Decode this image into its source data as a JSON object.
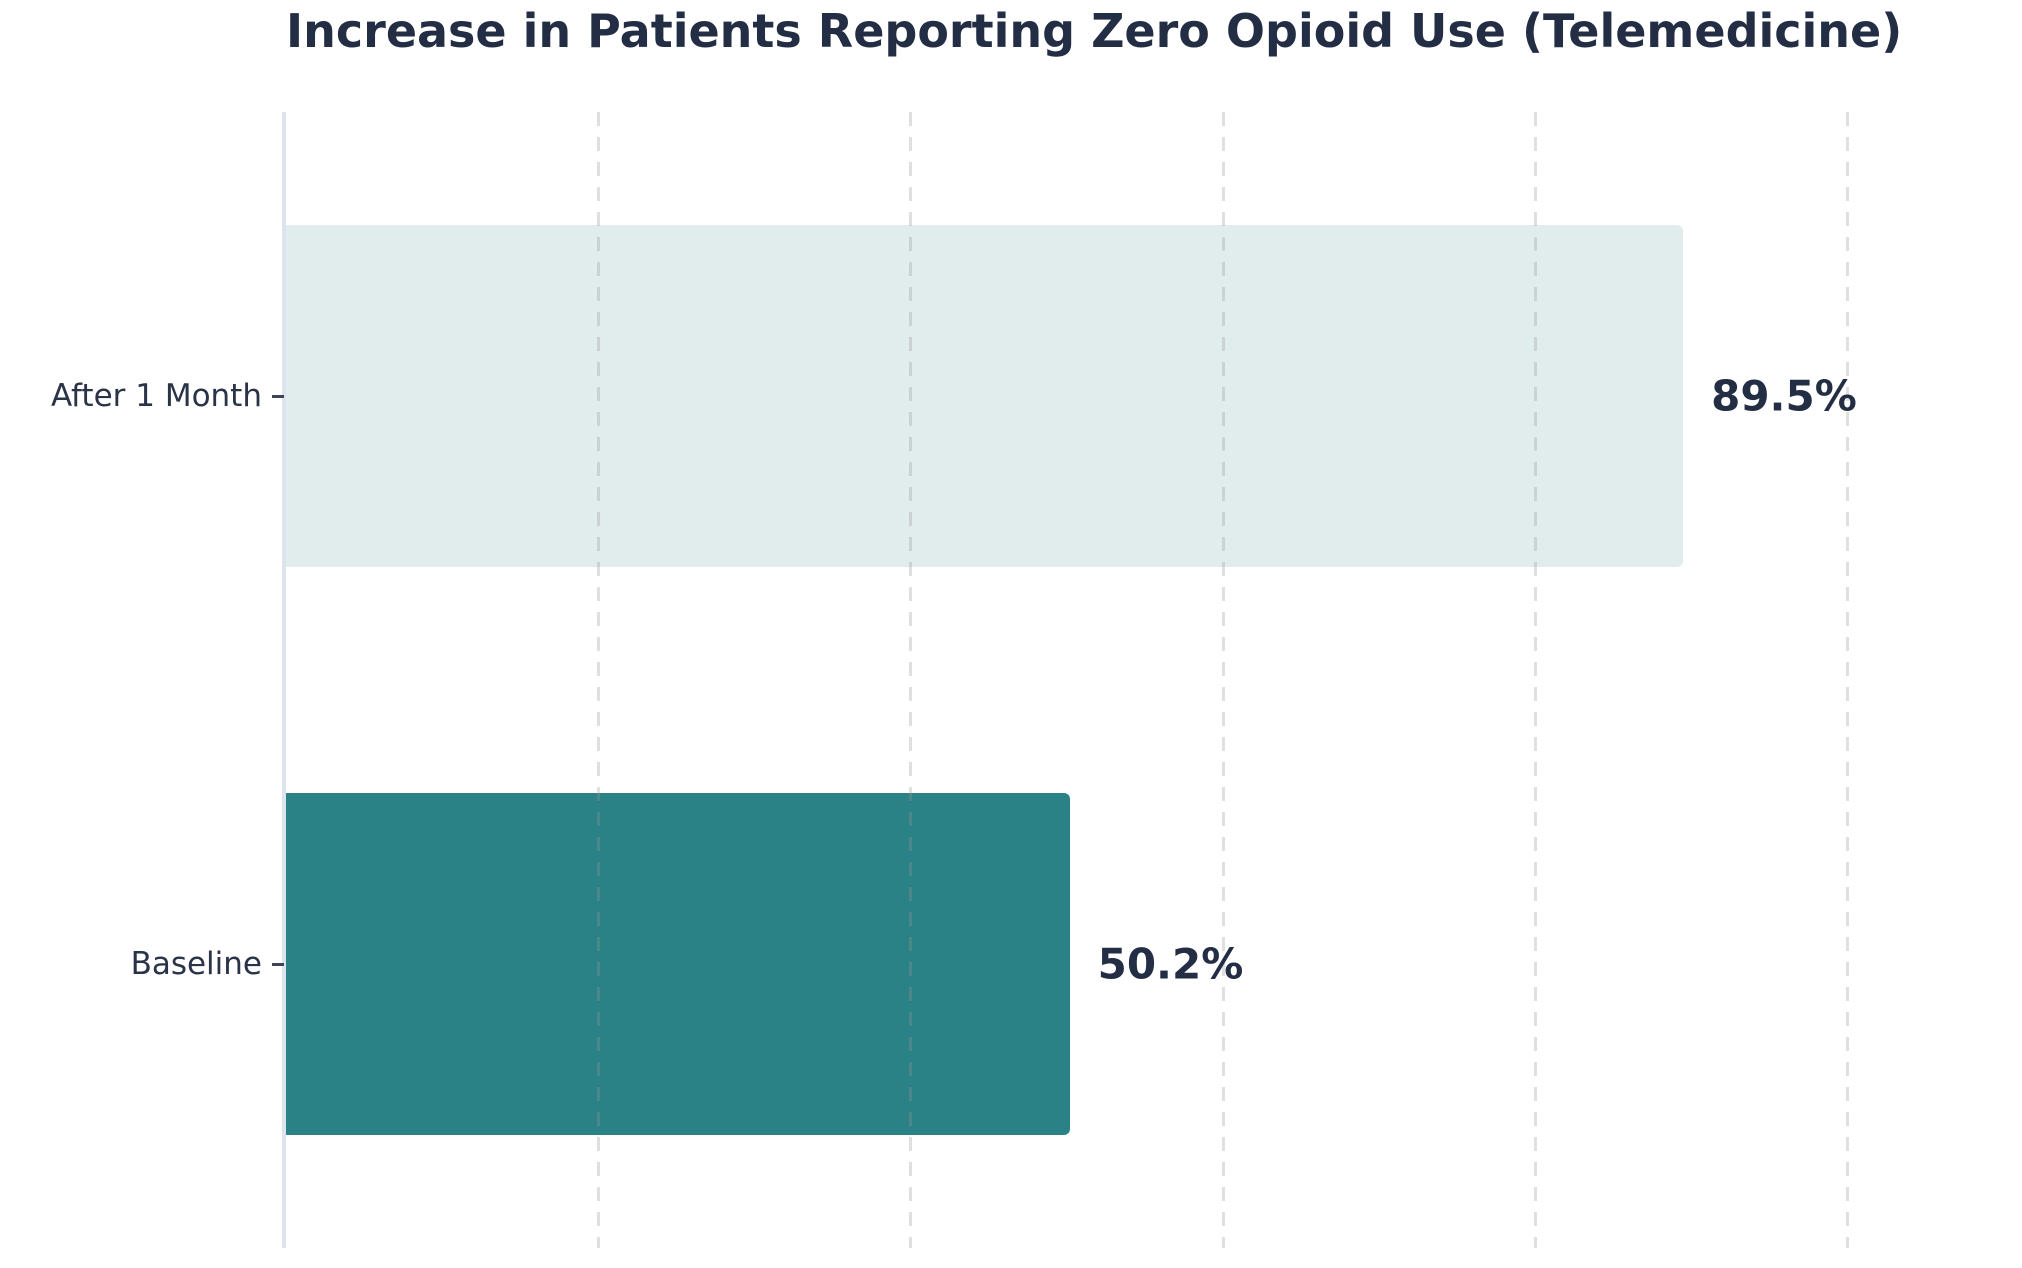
{
  "title": "Increase in Patients Reporting Zero Opioid Use (Telemedicine)",
  "chart_data": {
    "type": "bar",
    "orientation": "horizontal",
    "title": "Increase in Patients Reporting Zero Opioid Use (Telemedicine)",
    "categories": [
      "After 1 Month",
      "Baseline"
    ],
    "values": [
      89.5,
      50.2
    ],
    "value_labels": [
      "89.5%",
      "50.2%"
    ],
    "xlabel": "",
    "ylabel": "",
    "xlim": [
      0,
      100
    ],
    "x_gridlines": [
      20,
      40,
      60,
      80,
      100
    ],
    "grid": "vertical-dashed",
    "legend": "none",
    "bar_colors": [
      "#e0edec",
      "#2a8186"
    ],
    "title_color": "#232e45",
    "value_label_color": "#232e45",
    "category_label_color": "#2a3347",
    "axis_spine_color": "#dde4ee",
    "gridline_color": "#e6e6e6",
    "background_color": "#ffffff"
  }
}
